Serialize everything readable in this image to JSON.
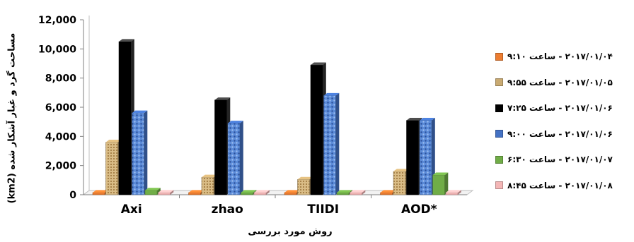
{
  "chart_data": {
    "type": "bar",
    "categories": [
      "Axi",
      "zhao",
      "TIIDI",
      "AOD*"
    ],
    "series": [
      {
        "name": "۲۰۱۷/۰۱/۰۴ - ساعت ۹:۱۰",
        "color": "#ed7d31",
        "pattern": "solid",
        "values": [
          0,
          0,
          0,
          0
        ]
      },
      {
        "name": "۲۰۱۷/۰۱/۰۵ - ساعت ۹:۵۵",
        "color": "#c9aa72",
        "pattern": "dots",
        "values": [
          3600,
          1200,
          1050,
          1600
        ]
      },
      {
        "name": "۲۰۱۷/۰۱/۰۶ - ساعت ۷:۲۵",
        "color": "#000000",
        "pattern": "solid",
        "values": [
          10500,
          6500,
          8900,
          5100
        ]
      },
      {
        "name": "۲۰۱۷/۰۱/۰۶ - ساعت ۹:۰۰",
        "color": "#4472c4",
        "pattern": "texture",
        "values": [
          5600,
          4900,
          6800,
          5100
        ]
      },
      {
        "name": "۲۰۱۷/۰۱/۰۷ - ساعت ۶:۳۰",
        "color": "#70ad47",
        "pattern": "solid",
        "values": [
          300,
          0,
          0,
          1350
        ]
      },
      {
        "name": "۲۰۱۷/۰۱/۰۸ - ساعت ۸:۴۵",
        "color": "#f4b6b6",
        "pattern": "solid",
        "values": [
          0,
          0,
          0,
          0
        ]
      }
    ],
    "yticks": [
      "0",
      "2,000",
      "4,000",
      "6,000",
      "8,000",
      "10,000",
      "12,000"
    ],
    "ylim": [
      0,
      12000
    ],
    "ylabel": "مساحت گرد و غبار آشکار شده (km2)",
    "xlabel": "روش مورد بررسی",
    "grid": false,
    "legend": "right"
  }
}
